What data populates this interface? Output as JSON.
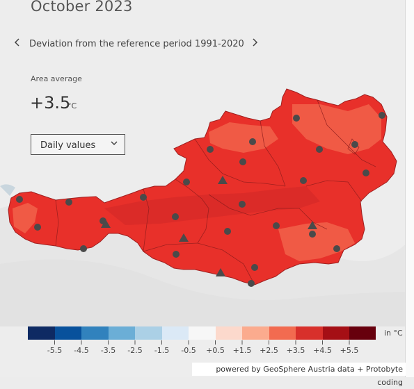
{
  "header": {
    "title": "October 2023",
    "period_label": "Deviation from the reference period 1991-2020",
    "prev_icon": "chevron-left-icon",
    "next_icon": "chevron-right-icon"
  },
  "summary": {
    "area_label": "Area average",
    "area_value": "+3.5",
    "area_unit": "°C"
  },
  "controls": {
    "dropdown_label": "Daily values",
    "dropdown_icon": "chevron-down-icon"
  },
  "legend": {
    "unit": "in °C",
    "colors": [
      "#0e2a63",
      "#08519c",
      "#3182bd",
      "#6baed6",
      "#abd0e6",
      "#dbe9f6",
      "#f7f7f7",
      "#fcd9cc",
      "#fbab8e",
      "#f26b50",
      "#d8302b",
      "#a50f15",
      "#67000d"
    ],
    "tick_labels": [
      "-5.5",
      "-4.5",
      "-3.5",
      "-2.5",
      "-1.5",
      "-0.5",
      "+0.5",
      "+1.5",
      "+2.5",
      "+3.5",
      "+4.5",
      "+5.5"
    ]
  },
  "map": {
    "fill_main": "#e8302a",
    "fill_light": "#f05a45",
    "fill_dark": "#c62626"
  },
  "footer": {
    "credit": "powered by GeoSphere Austria data + Protobyte coding"
  }
}
